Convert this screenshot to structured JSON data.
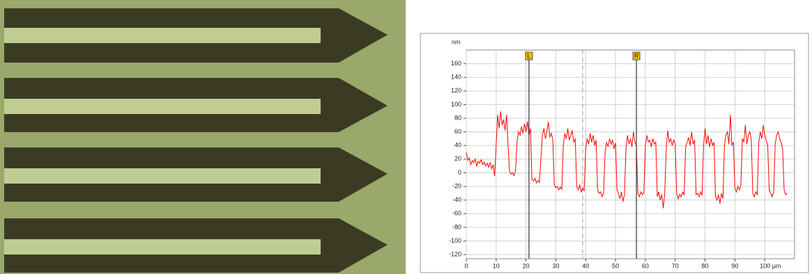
{
  "chart_data": {
    "type": "line",
    "y_label": "nm",
    "x": [
      0,
      0.5,
      1,
      1.5,
      2,
      2.5,
      3,
      3.5,
      4,
      4.5,
      5,
      5.5,
      6,
      6.5,
      7,
      7.5,
      8,
      8.5,
      9,
      9.5,
      10,
      10.5,
      11,
      11.5,
      12,
      12.5,
      13,
      13.5,
      14,
      14.5,
      15,
      15.5,
      16,
      16.5,
      17,
      17.5,
      18,
      18.5,
      19,
      19.5,
      20,
      20.5,
      21,
      21.5,
      22,
      22.5,
      23,
      23.5,
      24,
      24.5,
      25,
      25.5,
      26,
      26.5,
      27,
      27.5,
      28,
      28.5,
      29,
      29.5,
      30,
      30.5,
      31,
      31.5,
      32,
      32.5,
      33,
      33.5,
      34,
      34.5,
      35,
      35.5,
      36,
      36.5,
      37,
      37.5,
      38,
      38.5,
      39,
      39.5,
      40,
      40.5,
      41,
      41.5,
      42,
      42.5,
      43,
      43.5,
      44,
      44.5,
      45,
      45.5,
      46,
      46.5,
      47,
      47.5,
      48,
      48.5,
      49,
      49.5,
      50,
      50.5,
      51,
      51.5,
      52,
      52.5,
      53,
      53.5,
      54,
      54.5,
      55,
      55.5,
      56,
      56.5,
      57,
      57.5,
      58,
      58.5,
      59,
      59.5,
      60,
      60.5,
      61,
      61.5,
      62,
      62.5,
      63,
      63.5,
      64,
      64.5,
      65,
      65.5,
      66,
      66.5,
      67,
      67.5,
      68,
      68.5,
      69,
      69.5,
      70,
      70.5,
      71,
      71.5,
      72,
      72.5,
      73,
      73.5,
      74,
      74.5,
      75,
      75.5,
      76,
      76.5,
      77,
      77.5,
      78,
      78.5,
      79,
      79.5,
      80,
      80.5,
      81,
      81.5,
      82,
      82.5,
      83,
      83.5,
      84,
      84.5,
      85,
      85.5,
      86,
      86.5,
      87,
      87.5,
      88,
      88.5,
      89,
      89.5,
      90,
      90.5,
      91,
      91.5,
      92,
      92.5,
      93,
      93.5,
      94,
      94.5,
      95,
      95.5,
      96,
      96.5,
      97,
      97.5,
      98,
      98.5,
      99,
      99.5,
      100,
      100.5,
      101,
      101.5,
      102,
      102.5,
      103,
      103.5,
      104,
      104.5,
      105,
      105.5,
      106,
      106.5,
      107,
      107.5
    ],
    "values": [
      30,
      18,
      22,
      12,
      18,
      15,
      20,
      10,
      17,
      14,
      19,
      12,
      16,
      10,
      14,
      8,
      15,
      6,
      12,
      -5,
      40,
      85,
      65,
      90,
      70,
      78,
      62,
      85,
      40,
      2,
      -2,
      0,
      -4,
      3,
      45,
      60,
      55,
      68,
      58,
      72,
      60,
      75,
      55,
      65,
      -10,
      -12,
      -8,
      -15,
      -11,
      -14,
      20,
      55,
      65,
      50,
      60,
      75,
      52,
      58,
      48,
      -18,
      -22,
      -20,
      -25,
      -21,
      -24,
      40,
      58,
      50,
      65,
      48,
      55,
      62,
      45,
      50,
      -20,
      -25,
      -18,
      -28,
      -22,
      -26,
      35,
      50,
      42,
      58,
      45,
      55,
      40,
      48,
      -25,
      -30,
      -28,
      -35,
      -30,
      30,
      45,
      38,
      50,
      42,
      48,
      35,
      44,
      -25,
      -30,
      -38,
      -28,
      -42,
      -32,
      35,
      55,
      42,
      50,
      38,
      60,
      45,
      40,
      -30,
      -35,
      -28,
      -32,
      -30,
      40,
      55,
      45,
      48,
      38,
      50,
      42,
      45,
      -35,
      -28,
      -40,
      -32,
      -52,
      -30,
      35,
      62,
      45,
      50,
      40,
      48,
      42,
      -30,
      -38,
      -32,
      -35,
      -28,
      -33,
      38,
      45,
      52,
      40,
      60,
      42,
      48,
      -32,
      -30,
      -35,
      -28,
      -33,
      40,
      65,
      42,
      55,
      38,
      50,
      40,
      45,
      -35,
      -40,
      -32,
      -45,
      -30,
      -38,
      40,
      55,
      60,
      42,
      85,
      40,
      45,
      -22,
      -28,
      -20,
      -25,
      -18,
      50,
      45,
      70,
      42,
      55,
      60,
      48,
      -30,
      -35,
      -28,
      -32,
      45,
      60,
      50,
      70,
      55,
      48,
      40,
      -25,
      -30,
      -35,
      -28,
      42,
      55,
      60,
      50,
      45,
      35,
      -25,
      -32,
      -30
    ],
    "color": "#ff0000",
    "xlim": [
      0,
      110
    ],
    "ylim": [
      -126,
      180
    ],
    "xticks": [
      0,
      10,
      20,
      30,
      40,
      50,
      60,
      70,
      80,
      90,
      {
        "value": 100,
        "label": "100 µm"
      }
    ],
    "yticks": [
      -120,
      -100,
      -80,
      -60,
      -40,
      -20,
      0,
      20,
      40,
      60,
      80,
      100,
      120,
      140,
      160
    ],
    "grid": true,
    "cursors": [
      {
        "label": "L",
        "x": 21
      },
      {
        "label": "R",
        "x": 57
      }
    ],
    "reference_x": 39
  }
}
